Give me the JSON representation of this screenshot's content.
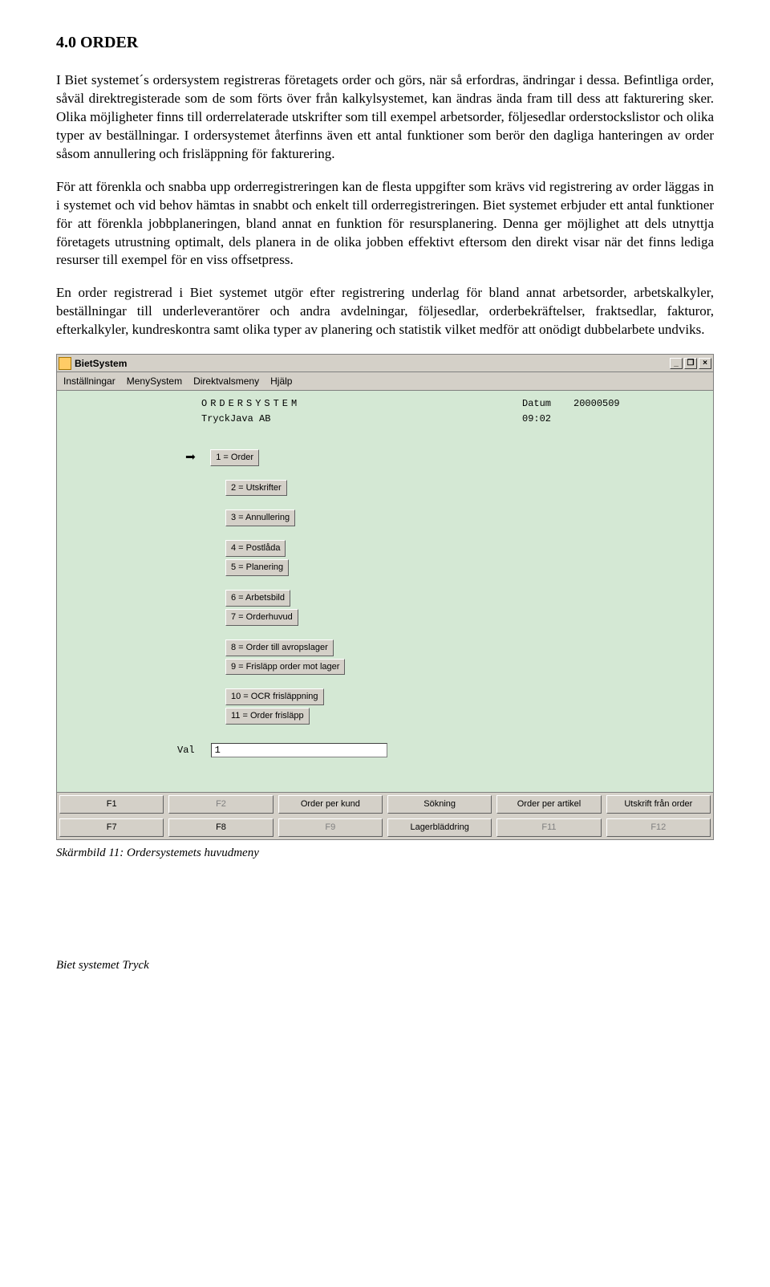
{
  "heading": "4.0 ORDER",
  "paragraphs": {
    "p1": "I Biet systemet´s ordersystem registreras företagets order och görs, när så erfordras, ändringar i dessa. Befintliga order, såväl direktregisterade som de som förts över från kalkylsystemet, kan ändras ända fram till dess att fakturering sker. Olika möjligheter finns till orderrelaterade utskrifter som till exempel arbetsorder, följesedlar orderstockslistor och olika typer av beställningar. I ordersystemet återfinns även ett antal funktioner som berör den dagliga hanteringen av order såsom annullering och frisläppning för fakturering.",
    "p2": "För att förenkla och snabba upp orderregistreringen kan de flesta uppgifter som krävs vid registrering av order läggas in i systemet och vid behov hämtas in snabbt och enkelt till orderregistreringen. Biet systemet erbjuder ett antal funktioner för att förenkla jobbplaneringen, bland annat en funktion för resursplanering. Denna ger möjlighet att dels utnyttja företagets utrustning optimalt, dels planera in de olika jobben effektivt eftersom den direkt visar när det finns lediga resurser till exempel för en viss offsetpress.",
    "p3": "En order registrerad i Biet systemet utgör efter registrering underlag för bland annat arbetsorder, arbetskalkyler, beställningar till underleverantörer och andra avdelningar, följesedlar, orderbekräftelser, fraktsedlar, fakturor, efterkalkyler, kundreskontra samt olika typer av planering och statistik vilket medför att onödigt dubbelarbete undviks."
  },
  "app": {
    "title": "BietSystem",
    "menubar": [
      "Inställningar",
      "MenySystem",
      "Direktvalsmeny",
      "Hjälp"
    ],
    "header": {
      "system_label": "ORDERSYSTEM",
      "date_label": "Datum",
      "date_value": "20000509",
      "company": "TryckJava AB",
      "time_value": "09:02"
    },
    "menu_items": {
      "g1": [
        "1 = Order"
      ],
      "g2": [
        "2 = Utskrifter"
      ],
      "g3": [
        "3 = Annullering"
      ],
      "g4": [
        "4 = Postlåda",
        "5 = Planering"
      ],
      "g5": [
        "6 = Arbetsbild",
        "7 = Orderhuvud"
      ],
      "g6": [
        "8 = Order till avropslager",
        "9 = Frisläpp order mot lager"
      ],
      "g7": [
        "10 = OCR frisläppning",
        "11 = Order frisläpp"
      ]
    },
    "val_label": "Val",
    "val_value": "1",
    "fkeys_row1": [
      {
        "k": "F1",
        "dim": false
      },
      {
        "k": "F2",
        "dim": true
      },
      {
        "k": "Order per kund",
        "dim": false
      },
      {
        "k": "Sökning",
        "dim": false
      },
      {
        "k": "Order per artikel",
        "dim": false
      },
      {
        "k": "Utskrift från order",
        "dim": false
      }
    ],
    "fkeys_row2": [
      {
        "k": "F7",
        "dim": false
      },
      {
        "k": "F8",
        "dim": false
      },
      {
        "k": "F9",
        "dim": true
      },
      {
        "k": "Lagerbläddring",
        "dim": false
      },
      {
        "k": "F11",
        "dim": true
      },
      {
        "k": "F12",
        "dim": true
      }
    ]
  },
  "caption": "Skärmbild 11: Ordersystemets huvudmeny",
  "footer": "Biet systemet Tryck",
  "colors": {
    "app_bg": "#d4e8d4",
    "chrome_bg": "#d4d0c8"
  }
}
